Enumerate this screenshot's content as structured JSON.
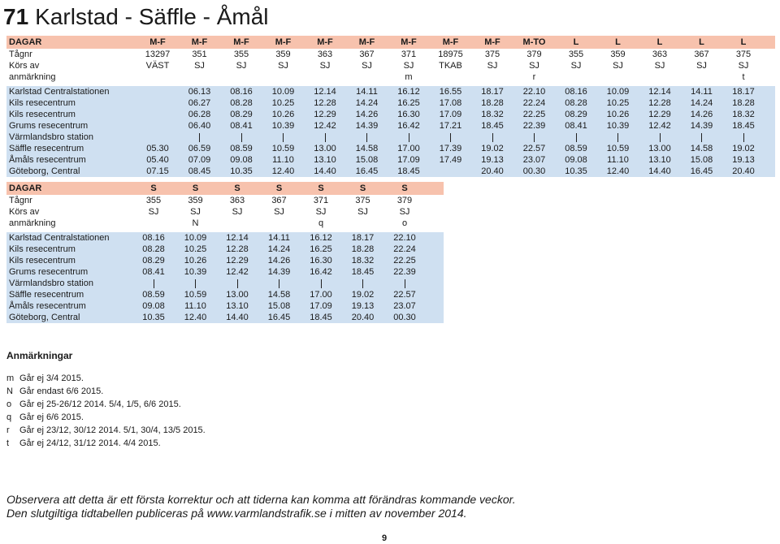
{
  "page": {
    "number": "71",
    "title": "Karlstad - Säffle - Åmål",
    "page_no": "9"
  },
  "table1": {
    "header": [
      "DAGAR",
      "M-F",
      "M-F",
      "M-F",
      "M-F",
      "M-F",
      "M-F",
      "M-F",
      "M-F",
      "M-F",
      "M-TO",
      "L",
      "L",
      "L",
      "L",
      "L"
    ],
    "rows": [
      [
        "Tågnr",
        "13297",
        "351",
        "355",
        "359",
        "363",
        "367",
        "371",
        "18975",
        "375",
        "379",
        "355",
        "359",
        "363",
        "367",
        "375"
      ],
      [
        "Körs av",
        "VÄST",
        "SJ",
        "SJ",
        "SJ",
        "SJ",
        "SJ",
        "SJ",
        "TKAB",
        "SJ",
        "SJ",
        "SJ",
        "SJ",
        "SJ",
        "SJ",
        "SJ"
      ],
      [
        "anmärkning",
        "",
        "",
        "",
        "",
        "",
        "",
        "m",
        "",
        "",
        "r",
        "",
        "",
        "",
        "",
        "t"
      ],
      [
        "Karlstad Centralstationen",
        "",
        "06.13",
        "08.16",
        "10.09",
        "12.14",
        "14.11",
        "16.12",
        "16.55",
        "18.17",
        "22.10",
        "08.16",
        "10.09",
        "12.14",
        "14.11",
        "18.17"
      ],
      [
        "Kils resecentrum",
        "",
        "06.27",
        "08.28",
        "10.25",
        "12.28",
        "14.24",
        "16.25",
        "17.08",
        "18.28",
        "22.24",
        "08.28",
        "10.25",
        "12.28",
        "14.24",
        "18.28"
      ],
      [
        "Kils resecentrum",
        "",
        "06.28",
        "08.29",
        "10.26",
        "12.29",
        "14.26",
        "16.30",
        "17.09",
        "18.32",
        "22.25",
        "08.29",
        "10.26",
        "12.29",
        "14.26",
        "18.32"
      ],
      [
        "Grums resecentrum",
        "",
        "06.40",
        "08.41",
        "10.39",
        "12.42",
        "14.39",
        "16.42",
        "17.21",
        "18.45",
        "22.39",
        "08.41",
        "10.39",
        "12.42",
        "14.39",
        "18.45"
      ],
      [
        "Värmlandsbro station",
        "",
        "|",
        "|",
        "|",
        "|",
        "|",
        "|",
        "|",
        "|",
        "|",
        "|",
        "|",
        "|",
        "|",
        "|"
      ],
      [
        "Säffle resecentrum",
        "05.30",
        "06.59",
        "08.59",
        "10.59",
        "13.00",
        "14.58",
        "17.00",
        "17.39",
        "19.02",
        "22.57",
        "08.59",
        "10.59",
        "13.00",
        "14.58",
        "19.02"
      ],
      [
        "Åmåls resecentrum",
        "05.40",
        "07.09",
        "09.08",
        "11.10",
        "13.10",
        "15.08",
        "17.09",
        "17.49",
        "19.13",
        "23.07",
        "09.08",
        "11.10",
        "13.10",
        "15.08",
        "19.13"
      ],
      [
        "Göteborg, Central",
        "07.15",
        "08.45",
        "10.35",
        "12.40",
        "14.40",
        "16.45",
        "18.45",
        "",
        "20.40",
        "00.30",
        "10.35",
        "12.40",
        "14.40",
        "16.45",
        "20.40"
      ]
    ]
  },
  "table2": {
    "header": [
      "DAGAR",
      "S",
      "S",
      "S",
      "S",
      "S",
      "S",
      "S"
    ],
    "rows": [
      [
        "Tågnr",
        "355",
        "359",
        "363",
        "367",
        "371",
        "375",
        "379"
      ],
      [
        "Körs av",
        "SJ",
        "SJ",
        "SJ",
        "SJ",
        "SJ",
        "SJ",
        "SJ"
      ],
      [
        "anmärkning",
        "",
        "N",
        "",
        "",
        "q",
        "",
        "o"
      ],
      [
        "Karlstad Centralstationen",
        "08.16",
        "10.09",
        "12.14",
        "14.11",
        "16.12",
        "18.17",
        "22.10"
      ],
      [
        "Kils resecentrum",
        "08.28",
        "10.25",
        "12.28",
        "14.24",
        "16.25",
        "18.28",
        "22.24"
      ],
      [
        "Kils resecentrum",
        "08.29",
        "10.26",
        "12.29",
        "14.26",
        "16.30",
        "18.32",
        "22.25"
      ],
      [
        "Grums resecentrum",
        "08.41",
        "10.39",
        "12.42",
        "14.39",
        "16.42",
        "18.45",
        "22.39"
      ],
      [
        "Värmlandsbro station",
        "|",
        "|",
        "|",
        "|",
        "|",
        "|",
        "|"
      ],
      [
        "Säffle resecentrum",
        "08.59",
        "10.59",
        "13.00",
        "14.58",
        "17.00",
        "19.02",
        "22.57"
      ],
      [
        "Åmåls resecentrum",
        "09.08",
        "11.10",
        "13.10",
        "15.08",
        "17.09",
        "19.13",
        "23.07"
      ],
      [
        "Göteborg, Central",
        "10.35",
        "12.40",
        "14.40",
        "16.45",
        "18.45",
        "20.40",
        "00.30"
      ]
    ]
  },
  "notes": {
    "heading": "Anmärkningar",
    "items": [
      {
        "key": "m",
        "text": "Går ej 3/4 2015."
      },
      {
        "key": "N",
        "text": "Går endast 6/6 2015."
      },
      {
        "key": "o",
        "text": "Går ej 25-26/12 2014. 5/4, 1/5, 6/6 2015."
      },
      {
        "key": "q",
        "text": "Går ej 6/6 2015."
      },
      {
        "key": "r",
        "text": "Går ej 23/12, 30/12 2014. 5/1, 30/4, 13/5 2015."
      },
      {
        "key": "t",
        "text": "Går ej 24/12, 31/12 2014. 4/4 2015."
      }
    ]
  },
  "footer": {
    "line1": "Observera att detta är ett första korrektur och att tiderna kan komma att förändras kommande veckor.",
    "line2": "Den slutgiltiga tidtabellen publiceras på www.varmlandstrafik.se i mitten av november 2014."
  },
  "colors": {
    "header_bg": "#f7c2ad",
    "shade_bg": "#cfe0f1"
  }
}
